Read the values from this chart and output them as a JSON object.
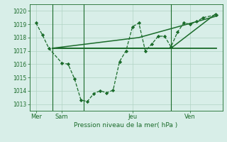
{
  "bg_color": "#d8eee8",
  "grid_color": "#b0d4c4",
  "line_color": "#1a6b2a",
  "title": "Pression niveau de la mer( hPa )",
  "xtick_labels": [
    "Mer",
    "Sam",
    "Jeu",
    "Ven"
  ],
  "xtick_positions": [
    0.5,
    2.5,
    8.0,
    12.5
  ],
  "ylim": [
    1012.5,
    1020.5
  ],
  "yticks": [
    1013,
    1014,
    1015,
    1016,
    1017,
    1018,
    1019,
    1020
  ],
  "xlim": [
    0,
    15
  ],
  "vlines": [
    1.8,
    4.2,
    11.0
  ],
  "series0": {
    "x": [
      0.5,
      1.0,
      1.5,
      2.5,
      3.0,
      3.5,
      4.0,
      4.5,
      5.0,
      5.5,
      6.0,
      6.5,
      7.0,
      7.5,
      8.0,
      8.5,
      9.0,
      9.5,
      10.0,
      10.5,
      11.0,
      11.5,
      12.0,
      12.5,
      13.0,
      13.5,
      14.5
    ],
    "y": [
      1019.1,
      1018.2,
      1017.2,
      1016.1,
      1016.0,
      1014.9,
      1013.3,
      1013.2,
      1013.8,
      1014.0,
      1013.85,
      1014.05,
      1016.2,
      1017.0,
      1018.8,
      1019.1,
      1017.0,
      1017.5,
      1018.1,
      1018.1,
      1017.3,
      1018.4,
      1019.1,
      1019.0,
      1019.2,
      1019.5,
      1019.7
    ]
  },
  "series1": {
    "x": [
      1.8,
      14.5
    ],
    "y": [
      1017.2,
      1017.2
    ]
  },
  "series2": {
    "x": [
      1.8,
      14.5
    ],
    "y": [
      1017.2,
      1017.2
    ]
  },
  "series3": {
    "x": [
      1.8,
      11.0,
      14.5
    ],
    "y": [
      1017.2,
      1017.2,
      1019.8
    ]
  },
  "series4": {
    "x": [
      1.8,
      8.5,
      14.5
    ],
    "y": [
      1017.2,
      1018.0,
      1019.6
    ]
  }
}
